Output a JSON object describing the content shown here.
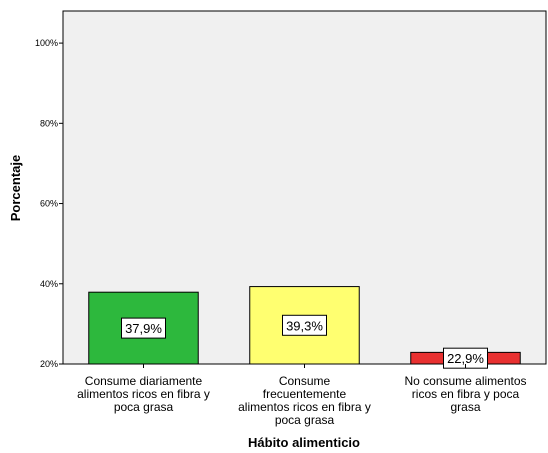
{
  "chart_data": {
    "type": "bar",
    "categories": [
      [
        "Consume diariamente",
        "alimentos ricos en fibra y",
        "poca grasa"
      ],
      [
        "Consume",
        "frecuentemente",
        "alimentos ricos en fibra y",
        "poca grasa"
      ],
      [
        "No consume alimentos",
        "ricos en fibra y poca",
        "grasa"
      ]
    ],
    "values": [
      37.9,
      39.3,
      22.9
    ],
    "data_labels": [
      "37,9%",
      "39,3%",
      "22,9%"
    ],
    "colors": [
      "#2db83d",
      "#ffff70",
      "#e83030"
    ],
    "xlabel": "Hábito alimenticio",
    "ylabel": "Porcentaje",
    "ylim": [
      20,
      108
    ],
    "yticks": [
      20,
      40,
      60,
      80,
      100
    ],
    "ytick_labels": [
      "20%",
      "40%",
      "60%",
      "80%",
      "100%"
    ],
    "plot_background": "#f0f0f0",
    "grid": false,
    "legend": "none"
  }
}
